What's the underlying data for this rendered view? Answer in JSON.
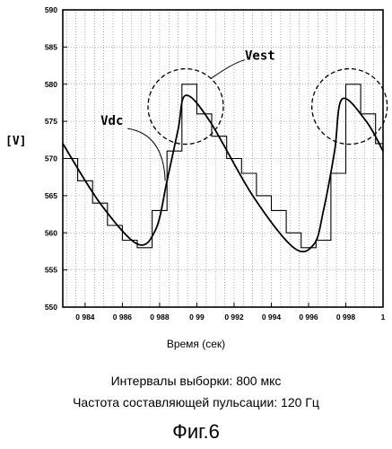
{
  "chart_data": {
    "type": "line",
    "ylabel": "[V]",
    "xlabel": "Время (сек)",
    "xlim": [
      0.9828,
      1.0
    ],
    "ylim": [
      550,
      590
    ],
    "x_ticks": [
      0.984,
      0.986,
      0.988,
      0.99,
      0.992,
      0.994,
      0.996,
      0.998,
      1.0
    ],
    "x_tick_labels": [
      "0 984",
      "0 986",
      "0 988",
      "0 99",
      "0 992",
      "0 994",
      "0 996",
      "0 998",
      "1"
    ],
    "y_ticks": [
      550,
      555,
      560,
      565,
      570,
      575,
      580,
      585,
      590
    ],
    "y_tick_labels": [
      "550",
      "555",
      "560",
      "565",
      "570",
      "575",
      "580",
      "585",
      "590"
    ],
    "grid": true,
    "series": [
      {
        "name": "Vdc",
        "style": "smooth",
        "x": [
          0.9828,
          0.9848,
          0.9868,
          0.9878,
          0.9884,
          0.989,
          0.9894,
          0.9907,
          0.993,
          0.9952,
          0.9963,
          0.9968,
          0.9974,
          0.9978,
          0.9991,
          1.0
        ],
        "y": [
          572,
          564,
          558.5,
          560.5,
          567,
          574,
          578.5,
          575,
          565,
          558,
          558.5,
          563,
          571,
          578,
          575,
          571
        ]
      },
      {
        "name": "Vest",
        "style": "step",
        "x": [
          0.9828,
          0.9836,
          0.9844,
          0.9852,
          0.986,
          0.9868,
          0.9876,
          0.9884,
          0.9892,
          0.99,
          0.9908,
          0.9916,
          0.9924,
          0.9932,
          0.994,
          0.9948,
          0.9956,
          0.9964,
          0.9972,
          0.998,
          0.9988,
          0.9996
        ],
        "y": [
          570,
          567,
          564,
          561,
          559,
          558,
          563,
          571,
          580,
          576,
          573,
          570,
          568,
          565,
          563,
          560,
          558,
          559,
          568,
          580,
          576,
          572
        ]
      }
    ],
    "annotations": [
      {
        "text": "Vest",
        "highlight": "dashed circles around the peaks"
      },
      {
        "text": "Vdc"
      }
    ]
  },
  "notes": {
    "sampling": "Интервалы выборки: 800 мкс",
    "ripple": "Частота составляющей пульсации: 120 Гц"
  },
  "figure_label": "Фиг.6"
}
